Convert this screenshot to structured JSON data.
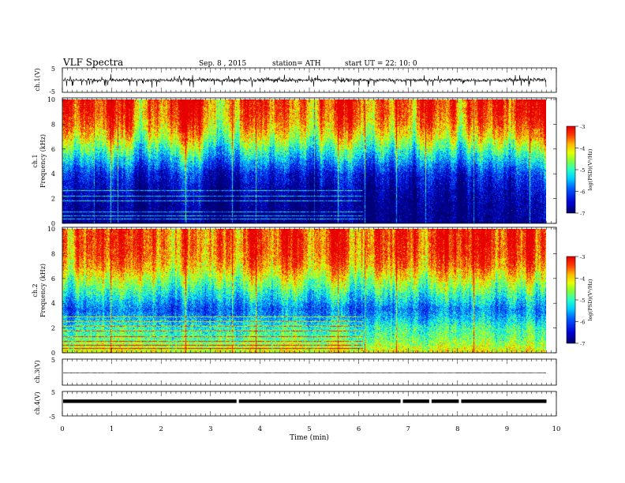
{
  "header": {
    "title": "VLF Spectra",
    "date": "Sep. 8 , 2015",
    "station": "station= ATH",
    "start": "start UT = 22: 10: 0"
  },
  "chart_data": [
    {
      "type": "line",
      "panel": "ch1-waveform",
      "ylabel": "ch.1(V)",
      "ylim": [
        -5,
        5
      ],
      "yticks": [
        "5",
        "-5"
      ],
      "note": "dense noisy waveform centred near 0 V, spikes reaching about -3 V",
      "series": [
        {
          "name": "",
          "level": 0,
          "spread": 2.8
        }
      ]
    },
    {
      "type": "heatmap",
      "panel": "ch1-spectrogram",
      "ylabel": "ch.1\nFrequency (kHz)",
      "ylabel_lines": [
        "ch.1",
        "Frequency (kHz)"
      ],
      "yticks": [
        "0",
        "2",
        "4",
        "6",
        "8",
        "10"
      ],
      "ylim": [
        0,
        10
      ],
      "colorbar": {
        "label": "log(PSD)(V²/Hz)",
        "ticks": [
          "-3",
          "-4",
          "-5",
          "-6",
          "-7"
        ],
        "range": [
          -7,
          -3
        ]
      },
      "profile_khz": [
        [
          0,
          -6.9
        ],
        [
          1,
          -6.9
        ],
        [
          2,
          -6.8
        ],
        [
          3,
          -6.6
        ],
        [
          4,
          -6.3
        ],
        [
          5,
          -5.6
        ],
        [
          6,
          -4.9
        ],
        [
          7,
          -4.2
        ],
        [
          8,
          -3.7
        ],
        [
          9,
          -3.4
        ],
        [
          10,
          -3.3
        ]
      ],
      "horizontal_lines_khz": [
        0.3,
        0.6,
        0.9,
        1.8,
        2.2,
        2.6
      ],
      "vertical_lines_min": [
        0.65,
        1.0,
        1.15,
        2.55,
        3.5,
        4.0,
        5.2,
        5.7,
        6.25,
        6.9,
        7.5,
        8.5,
        9.65
      ]
    },
    {
      "type": "heatmap",
      "panel": "ch2-spectrogram",
      "ylabel": "ch.2\nFrequency (kHz)",
      "ylabel_lines": [
        "ch.2",
        "Frequency (kHz)"
      ],
      "yticks": [
        "0",
        "2",
        "4",
        "6",
        "8",
        "10"
      ],
      "ylim": [
        0,
        10
      ],
      "colorbar": {
        "label": "log(PSD)(V²/Hz)",
        "ticks": [
          "-3",
          "-4",
          "-5",
          "-6",
          "-7"
        ],
        "range": [
          -7,
          -3
        ]
      },
      "profile_khz": [
        [
          0,
          -4.1
        ],
        [
          0.5,
          -4.4
        ],
        [
          1,
          -4.7
        ],
        [
          2,
          -5.0
        ],
        [
          3,
          -5.6
        ],
        [
          3.5,
          -5.8
        ],
        [
          4,
          -5.5
        ],
        [
          5,
          -4.9
        ],
        [
          6,
          -4.3
        ],
        [
          7,
          -3.7
        ],
        [
          8,
          -3.4
        ],
        [
          9,
          -3.3
        ],
        [
          10,
          -3.3
        ]
      ],
      "horizontal_lines_khz": [
        0.3,
        0.6,
        0.9,
        1.3,
        1.7,
        2.1,
        2.5,
        2.9
      ],
      "vertical_lines_min": [
        1.0,
        2.55,
        3.5,
        4.0,
        5.7,
        6.25,
        6.9,
        8.5
      ]
    },
    {
      "type": "line",
      "panel": "ch3-waveform",
      "ylabel": "ch.3(V)",
      "ylim": [
        -5,
        5
      ],
      "yticks": [
        "5"
      ],
      "note": "flat trace slightly below 0 V",
      "series": [
        {
          "name": "",
          "level": -0.3,
          "spread": 0.15
        }
      ]
    },
    {
      "type": "line",
      "panel": "ch4-waveform",
      "ylabel": "ch.4(V)",
      "ylim": [
        -5,
        5
      ],
      "yticks": [
        "5",
        "-5"
      ],
      "note": "thick trace near +1 V with brief gaps",
      "series": [
        {
          "name": "",
          "level": 1.0,
          "spread": 0.35
        }
      ],
      "gaps_min": [
        3.55,
        6.87,
        7.45,
        8.05
      ]
    },
    {
      "type": "axis",
      "panel": "time-axis",
      "xlabel": "Time (min)",
      "xlim": [
        0,
        10
      ],
      "xticks": [
        "0",
        "1",
        "2",
        "3",
        "4",
        "5",
        "6",
        "7",
        "8",
        "9",
        "10"
      ],
      "data_end_min": 9.8
    }
  ]
}
